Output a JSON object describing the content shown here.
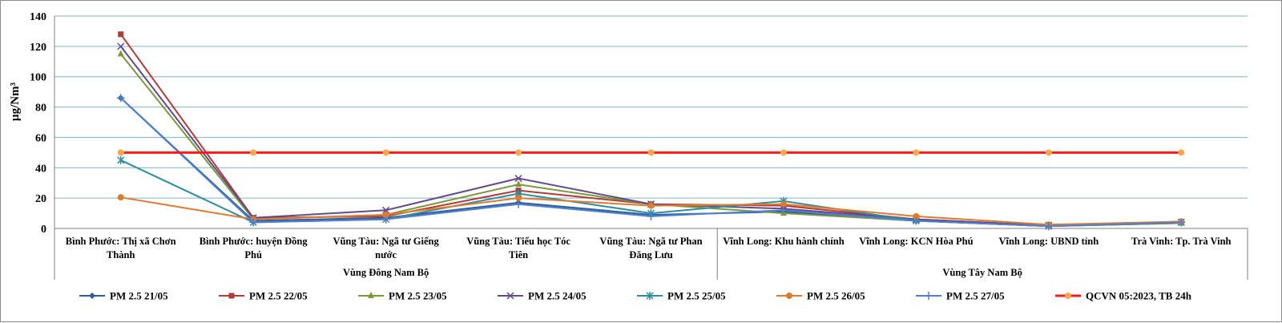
{
  "chart_data": {
    "type": "line",
    "title": "",
    "ylabel": "µg/Nm³",
    "xlabel": "",
    "ylim": [
      0,
      140
    ],
    "yticks": [
      0,
      20,
      40,
      60,
      80,
      100,
      120,
      140
    ],
    "grid": true,
    "legend_position": "bottom",
    "categories": [
      [
        "Bình Phước: Thị xã Chơn",
        "Thành"
      ],
      [
        "Bình Phước: huyện Đồng",
        "Phú"
      ],
      [
        "Vũng Tàu: Ngã tư Giếng",
        "nước"
      ],
      [
        "Vũng Tàu: Tiểu học Tóc",
        "Tiên"
      ],
      [
        "Vũng Tàu: Ngã tư Phan",
        "Đăng Lưu"
      ],
      [
        "Vĩnh Long: Khu hành chính"
      ],
      [
        "Vĩnh Long: KCN Hòa Phú"
      ],
      [
        "Vĩnh Long: UBND tỉnh"
      ],
      [
        "Trà Vinh: Tp. Trà Vinh"
      ]
    ],
    "groups": [
      {
        "name": "Vùng Đông Nam Bộ",
        "start": 0,
        "end": 4
      },
      {
        "name": "Vùng Tây Nam Bộ",
        "start": 5,
        "end": 8
      }
    ],
    "series": [
      {
        "name": "PM 2.5 21/05",
        "color": "#2f5c9a",
        "marker": "diamond",
        "values": [
          86,
          5,
          7,
          17,
          9,
          11,
          5,
          1.5,
          3.5
        ]
      },
      {
        "name": "PM 2.5 22/05",
        "color": "#b23b37",
        "marker": "square",
        "values": [
          128,
          7,
          8,
          25,
          16,
          15,
          6,
          2,
          4.5
        ]
      },
      {
        "name": "PM 2.5 23/05",
        "color": "#78993c",
        "marker": "triangle",
        "values": [
          115,
          6,
          9,
          29,
          16,
          10,
          5,
          1.5,
          3.5
        ]
      },
      {
        "name": "PM 2.5 24/05",
        "color": "#634a8a",
        "marker": "x",
        "values": [
          120,
          7,
          12,
          33,
          16,
          13,
          6,
          2,
          4
        ]
      },
      {
        "name": "PM 2.5 25/05",
        "color": "#2e8d9e",
        "marker": "star",
        "values": [
          45,
          4,
          6,
          23,
          10,
          18,
          5,
          1.5,
          4
        ]
      },
      {
        "name": "PM 2.5 26/05",
        "color": "#e07b2e",
        "marker": "circle",
        "values": [
          20.5,
          6,
          9,
          20,
          15,
          16,
          8,
          2.5,
          4.5
        ]
      },
      {
        "name": "PM 2.5 27/05",
        "color": "#4f7fd0",
        "marker": "plus",
        "values": [
          86,
          4,
          6,
          16,
          8,
          12,
          5,
          1.5,
          4
        ]
      },
      {
        "name": "QCVN 05:2023, TB 24h",
        "color": "#ff1a1a",
        "marker": "circle",
        "marker_color": "#ffa64d",
        "values": [
          50,
          50,
          50,
          50,
          50,
          50,
          50,
          50,
          50
        ]
      }
    ]
  }
}
